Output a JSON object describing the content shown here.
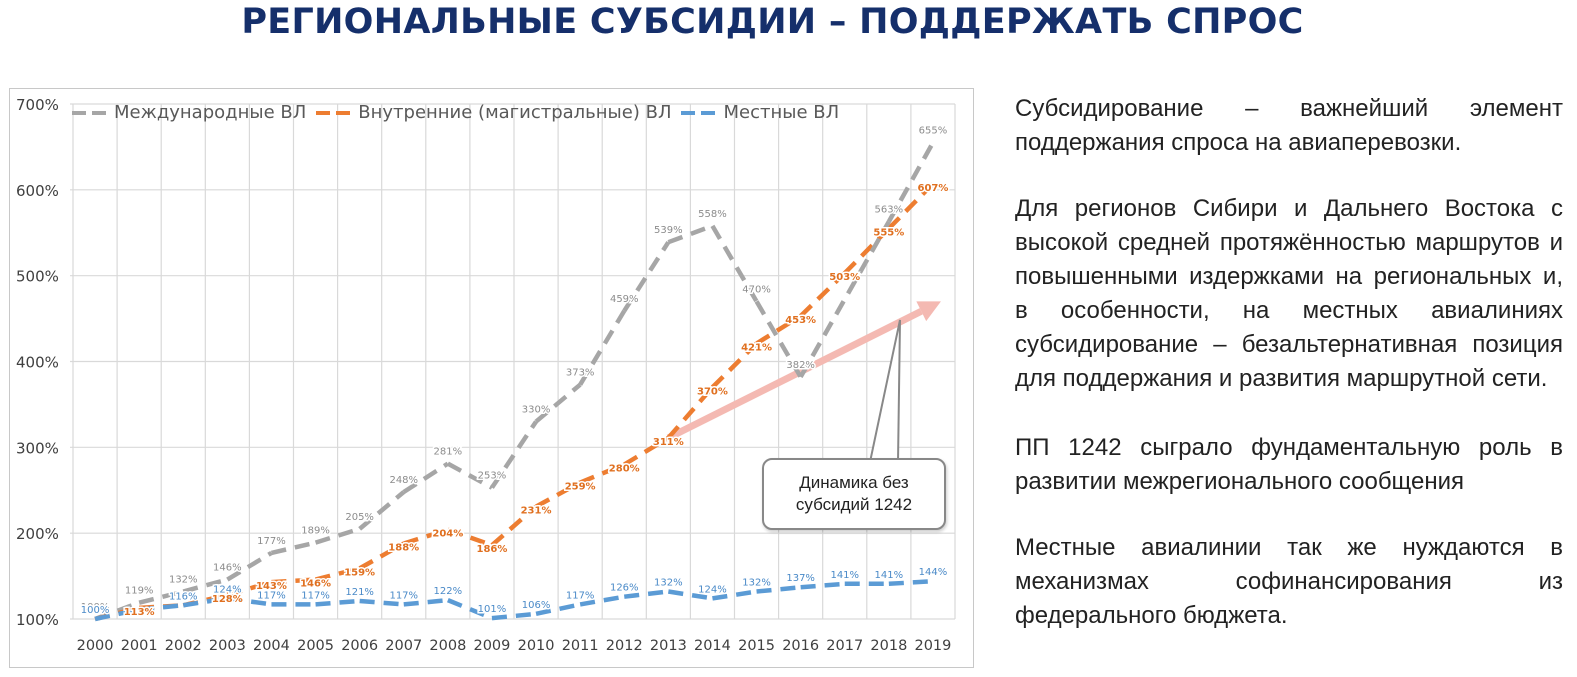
{
  "title": "РЕГИОНАЛЬНЫЕ СУБСИДИИ – ПОДДЕРЖАТЬ СПРОС",
  "chart_data": {
    "type": "line",
    "x": [
      "2000",
      "2001",
      "2002",
      "2003",
      "2004",
      "2005",
      "2006",
      "2007",
      "2008",
      "2009",
      "2010",
      "2011",
      "2012",
      "2013",
      "2014",
      "2015",
      "2016",
      "2017",
      "2018",
      "2019"
    ],
    "yticks": [
      "700%",
      "600%",
      "500%",
      "400%",
      "300%",
      "200%",
      "100%"
    ],
    "ylim": [
      100,
      700
    ],
    "grid": true,
    "legend_position": "top",
    "series": [
      {
        "name": "Международные ВЛ",
        "color": "#a6a6a6",
        "values": [
          100,
          119,
          132,
          146,
          177,
          189,
          205,
          248,
          281,
          253,
          330,
          373,
          459,
          539,
          558,
          470,
          382,
          null,
          563,
          655
        ],
        "labels": [
          "100%",
          "119%",
          "132%",
          "146%",
          "177%",
          "189%",
          "205%",
          "248%",
          "281%",
          "253%",
          "330%",
          "373%",
          "459%",
          "539%",
          "558%",
          "470%",
          "382%",
          "",
          "563%",
          "655%"
        ]
      },
      {
        "name": "Внутренние (магистральные) ВЛ",
        "color": "#ed7d31",
        "values": [
          100,
          113,
          116,
          128,
          143,
          146,
          159,
          188,
          204,
          186,
          231,
          259,
          280,
          311,
          370,
          421,
          453,
          503,
          555,
          607
        ],
        "labels": [
          "",
          "113%",
          "",
          "128%",
          "143%",
          "146%",
          "159%",
          "188%",
          "204%",
          "186%",
          "231%",
          "259%",
          "280%",
          "311%",
          "370%",
          "421%",
          "453%",
          "503%",
          "555%",
          "607%"
        ]
      },
      {
        "name": "Местные ВЛ",
        "color": "#5b9bd5",
        "values": [
          100,
          111,
          116,
          124,
          117,
          117,
          121,
          117,
          122,
          101,
          106,
          117,
          126,
          132,
          124,
          132,
          137,
          141,
          141,
          144
        ],
        "labels": [
          "100%",
          "",
          "116%",
          "124%",
          "117%",
          "117%",
          "121%",
          "117%",
          "122%",
          "101%",
          "106%",
          "117%",
          "126%",
          "132%",
          "124%",
          "132%",
          "137%",
          "141%",
          "141%",
          "144%"
        ]
      }
    ],
    "annotation": {
      "text_line1": "Динамика без",
      "text_line2": "субсидий 1242",
      "arrow_color": "#f4b9b2",
      "from": {
        "x": "2013",
        "y": 311
      },
      "to": {
        "x": "2019",
        "y": 470
      }
    }
  },
  "side_text": {
    "p1": "Субсидирование – важнейший элемент поддержания спроса на авиаперевозки.",
    "p2": "Для регионов Сибири и Дальнего Востока с высокой средней протяжённостью маршрутов и повышенными издержками на региональных и, в особенности, на местных авиалиниях субсидирование – безальтернативная позиция для поддержания и развития маршрутной сети.",
    "p3": "ПП 1242 сыграло фундаментальную роль в развитии межрегионального сообщения",
    "p4": "Местные авиалинии так же нуждаются в механизмах софинансирования из федерального бюджета."
  }
}
